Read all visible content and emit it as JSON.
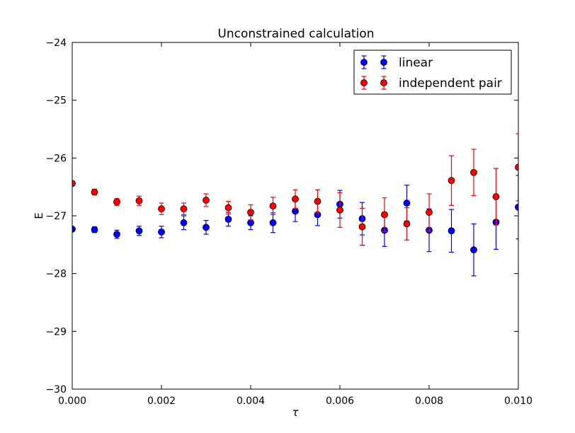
{
  "chart_data": {
    "type": "scatter",
    "title": "Unconstrained calculation",
    "xlabel": "τ",
    "ylabel": "E",
    "xlim": [
      0.0,
      0.01
    ],
    "ylim": [
      -30,
      -24
    ],
    "xticks": [
      "0.000",
      "0.002",
      "0.004",
      "0.006",
      "0.008",
      "0.010"
    ],
    "yticks": [
      "−30",
      "−29",
      "−28",
      "−27",
      "−26",
      "−25",
      "−24"
    ],
    "grid": false,
    "legend_position": "top-right",
    "series": [
      {
        "name": "linear",
        "color": "#0000ff",
        "x": [
          0.0,
          0.0005,
          0.001,
          0.0015,
          0.002,
          0.0025,
          0.003,
          0.0035,
          0.004,
          0.0045,
          0.005,
          0.0055,
          0.006,
          0.0065,
          0.007,
          0.0075,
          0.008,
          0.0085,
          0.009,
          0.0095,
          0.01
        ],
        "y": [
          -27.23,
          -27.24,
          -27.32,
          -27.26,
          -27.28,
          -27.12,
          -27.2,
          -27.06,
          -27.12,
          -27.12,
          -26.92,
          -26.98,
          -26.8,
          -27.05,
          -27.25,
          -26.78,
          -27.25,
          -27.26,
          -27.59,
          -27.11,
          -26.85
        ],
        "err": [
          0.03,
          0.05,
          0.07,
          0.08,
          0.1,
          0.12,
          0.12,
          0.12,
          0.12,
          0.17,
          0.18,
          0.19,
          0.24,
          0.28,
          0.28,
          0.31,
          0.37,
          0.37,
          0.45,
          0.47,
          0.55
        ]
      },
      {
        "name": "independent pair",
        "color": "#ff0000",
        "x": [
          0.0,
          0.0005,
          0.001,
          0.0015,
          0.002,
          0.0025,
          0.003,
          0.0035,
          0.004,
          0.0045,
          0.005,
          0.0055,
          0.006,
          0.0065,
          0.007,
          0.0075,
          0.008,
          0.0085,
          0.009,
          0.0095,
          0.01
        ],
        "y": [
          -26.44,
          -26.59,
          -26.76,
          -26.74,
          -26.88,
          -26.88,
          -26.73,
          -26.86,
          -26.94,
          -26.83,
          -26.71,
          -26.75,
          -26.9,
          -27.19,
          -26.98,
          -27.14,
          -26.94,
          -26.39,
          -26.25,
          -26.67,
          -26.16
        ],
        "err": [
          0.03,
          0.05,
          0.06,
          0.08,
          0.1,
          0.1,
          0.11,
          0.11,
          0.13,
          0.15,
          0.16,
          0.2,
          0.3,
          0.32,
          0.29,
          0.28,
          0.32,
          0.43,
          0.4,
          0.49,
          0.58
        ]
      }
    ]
  }
}
